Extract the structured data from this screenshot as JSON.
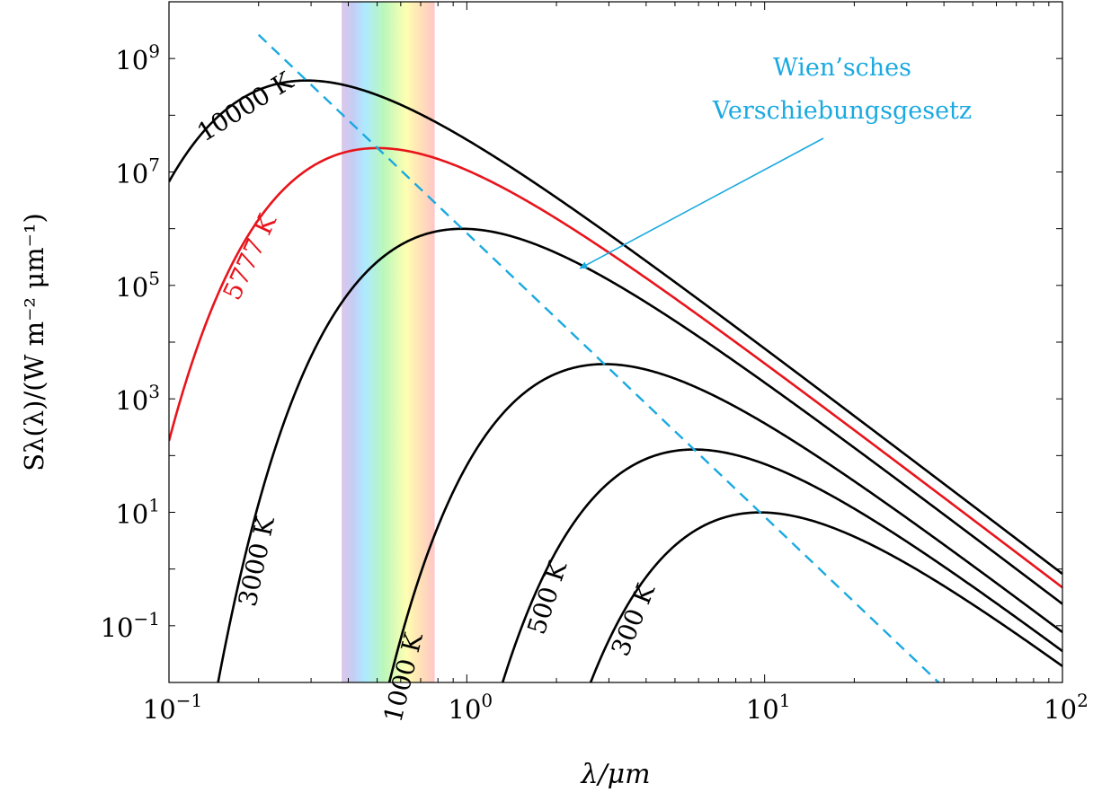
{
  "chart_data": {
    "type": "line",
    "x_scale": "log",
    "y_scale": "log",
    "xlim": [
      0.1,
      100
    ],
    "ylim": [
      0.01,
      10000000000
    ],
    "x_ticks": [
      {
        "value": 0.1,
        "base": "10",
        "exp": "−1"
      },
      {
        "value": 1,
        "base": "10",
        "exp": "0"
      },
      {
        "value": 10,
        "base": "10",
        "exp": "1"
      },
      {
        "value": 100,
        "base": "10",
        "exp": "2"
      }
    ],
    "y_ticks": [
      {
        "value": 0.1,
        "base": "10",
        "exp": "−1"
      },
      {
        "value": 10,
        "base": "10",
        "exp": "1"
      },
      {
        "value": 1000,
        "base": "10",
        "exp": "3"
      },
      {
        "value": 100000,
        "base": "10",
        "exp": "5"
      },
      {
        "value": 10000000,
        "base": "10",
        "exp": "7"
      },
      {
        "value": 1000000000,
        "base": "10",
        "exp": "9"
      }
    ],
    "xlabel": "λ/μm",
    "ylabel": "Sλ(λ)/(W m⁻² μm⁻¹)",
    "visible_band_um": [
      0.38,
      0.78
    ],
    "series": [
      {
        "name": "10000 K",
        "temperature_K": 10000,
        "color": "#000000",
        "label_at_x": 0.16,
        "label_angle": -32
      },
      {
        "name": "5777 K",
        "temperature_K": 5777,
        "color": "#e8141b",
        "label_at_x": 0.17,
        "label_angle": -65
      },
      {
        "name": "3000 K",
        "temperature_K": 3000,
        "color": "#000000",
        "label_at_x": 0.18,
        "label_angle": -78
      },
      {
        "name": "1000 K",
        "temperature_K": 1000,
        "color": "#000000",
        "label_at_x": 0.56,
        "label_angle": -76
      },
      {
        "name": "500 K",
        "temperature_K": 500,
        "color": "#000000",
        "label_at_x": 1.7,
        "label_angle": -72
      },
      {
        "name": "300 K",
        "temperature_K": 300,
        "color": "#000000",
        "label_at_x": 3.3,
        "label_angle": -68
      }
    ],
    "wien_line": {
      "color": "#1aa9e0",
      "dash": "dashed"
    },
    "annotation": {
      "lines": [
        "Wien’sches",
        "Verschiebungsgesetz"
      ],
      "color": "#1aa9e0",
      "arrow_to": {
        "x": 2.4,
        "y": 200000
      }
    },
    "grid": false,
    "legend": "none"
  }
}
